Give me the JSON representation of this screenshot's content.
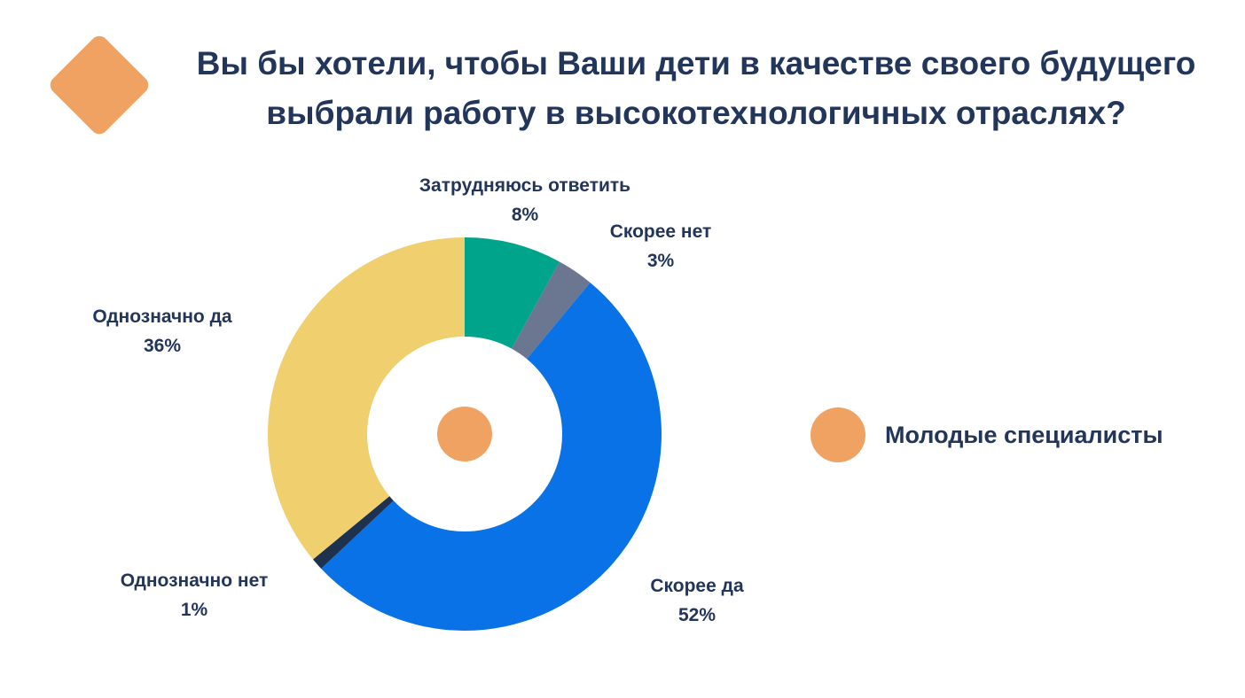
{
  "title": {
    "line1": "Вы бы хотели, чтобы Ваши дети в качестве своего будущего",
    "line2": "выбрали работу в высокотехнологичных отраслях?"
  },
  "chart_data": {
    "type": "pie",
    "variant": "donut",
    "title": "Вы бы хотели, чтобы Ваши дети в качестве своего будущего выбрали работу в высокотехнологичных отраслях?",
    "slices": [
      {
        "label": "Затрудняюсь ответить",
        "value": 8,
        "value_label": "8%",
        "color": "#00a48a"
      },
      {
        "label": "Скорее нет",
        "value": 3,
        "value_label": "3%",
        "color": "#6b7690"
      },
      {
        "label": "Скорее да",
        "value": 52,
        "value_label": "52%",
        "color": "#0872e6"
      },
      {
        "label": "Однозначно нет",
        "value": 1,
        "value_label": "1%",
        "color": "#1e3250"
      },
      {
        "label": "Однозначно да",
        "value": 36,
        "value_label": "36%",
        "color": "#f0cf6e"
      }
    ],
    "legend": {
      "placement": "right",
      "entries": [
        {
          "name": "Молодые специалисты",
          "color": "#f0a262"
        }
      ]
    },
    "center_marker_color": "#f0a262"
  },
  "colors": {
    "accent": "#f0a262",
    "text": "#22355a"
  }
}
